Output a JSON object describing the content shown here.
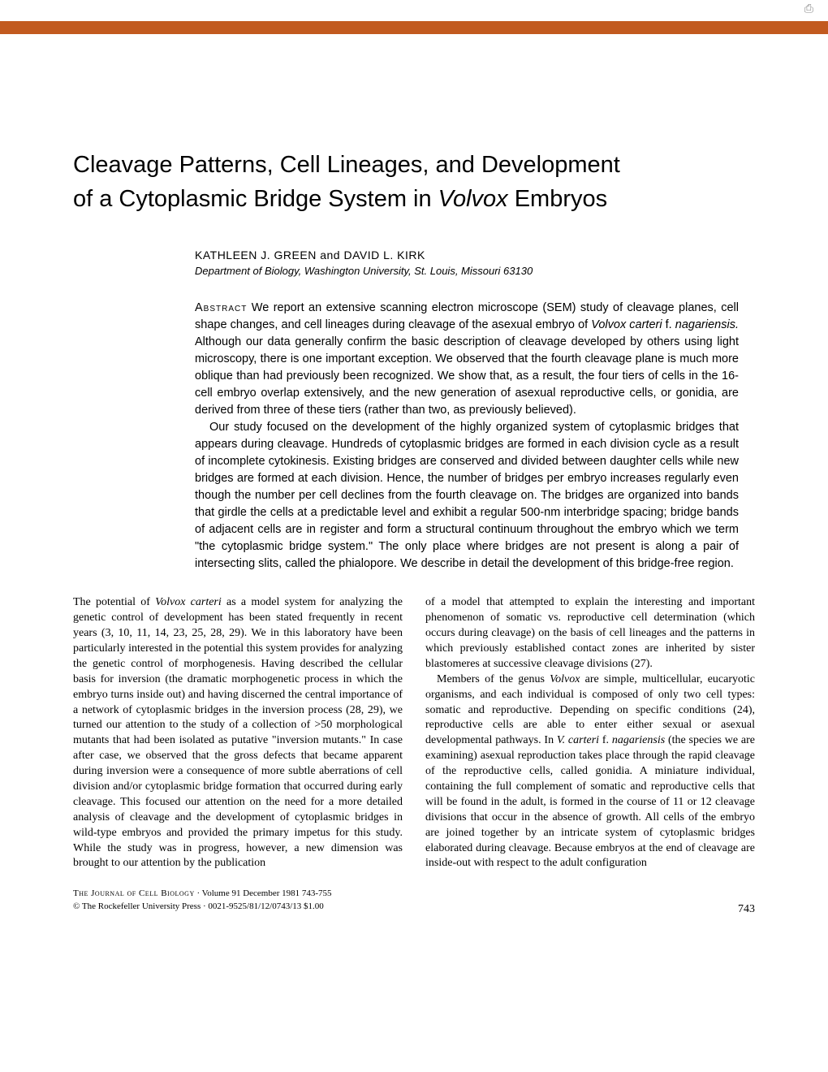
{
  "header": {
    "bar_color": "#c25a1f"
  },
  "title": {
    "line1": "Cleavage Patterns, Cell Lineages, and Development",
    "line2_pre": "of a Cytoplasmic Bridge System in ",
    "line2_italic": "Volvox",
    "line2_post": " Embryos"
  },
  "authors": "KATHLEEN J. GREEN and DAVID L. KIRK",
  "affiliation": "Department of Biology, Washington University, St. Louis, Missouri 63130",
  "abstract": {
    "label": "Abstract",
    "p1_pre": "   We report an extensive scanning electron microscope (SEM) study of cleavage planes, cell shape changes, and cell lineages during cleavage of the asexual embryo of ",
    "p1_it1": "Volvox carteri",
    "p1_mid": " f. ",
    "p1_it2": "nagariensis.",
    "p1_post": " Although our data generally confirm the basic description of cleavage developed by others using light microscopy, there is one important exception. We observed that the fourth cleavage plane is much more oblique than had previously been recognized. We show that, as a result, the four tiers of cells in the 16-cell embryo overlap extensively, and the new generation of asexual reproductive cells, or gonidia, are derived from three of these tiers (rather than two, as previously believed).",
    "p2": "Our study focused on the development of the highly organized system of cytoplasmic bridges that appears during cleavage. Hundreds of cytoplasmic bridges are formed in each division cycle as a result of incomplete cytokinesis. Existing bridges are conserved and divided between daughter cells while new bridges are formed at each division. Hence, the number of bridges per embryo increases regularly even though the number per cell declines from the fourth cleavage on. The bridges are organized into bands that girdle the cells at a predictable level and exhibit a regular 500-nm interbridge spacing; bridge bands of adjacent cells are in register and form a structural continuum throughout the embryo which we term \"the cytoplasmic bridge system.\" The only place where bridges are not present is along a pair of intersecting slits, called the phialopore. We describe in detail the development of this bridge-free region."
  },
  "body": {
    "left": {
      "p1_pre": "The potential of ",
      "p1_it": "Volvox carteri",
      "p1_post": " as a model system for analyzing the genetic control of development has been stated frequently in recent years (3, 10, 11, 14, 23, 25, 28, 29). We in this laboratory have been particularly interested in the potential this system provides for analyzing the genetic control of morphogenesis. Having described the cellular basis for inversion (the dramatic morphogenetic process in which the embryo turns inside out) and having discerned the central importance of a network of cytoplasmic bridges in the inversion process (28, 29), we turned our attention to the study of a collection of >50 morphological mutants that had been isolated as putative \"inversion mutants.\" In case after case, we observed that the gross defects that became apparent during inversion were a consequence of more subtle aberrations of cell division and/or cytoplasmic bridge formation that occurred during early cleavage. This focused our attention on the need for a more detailed analysis of cleavage and the development of cytoplasmic bridges in wild-type embryos and provided the primary impetus for this study. While the study was in progress, however, a new dimension was brought to our attention by the publication"
    },
    "right": {
      "p1": "of a model that attempted to explain the interesting and important phenomenon of somatic vs. reproductive cell determination (which occurs during cleavage) on the basis of cell lineages and the patterns in which previously established contact zones are inherited by sister blastomeres at successive cleavage divisions (27).",
      "p2_pre": "Members of the genus ",
      "p2_it1": "Volvox",
      "p2_mid1": " are simple, multicellular, eucaryotic organisms, and each individual is composed of only two cell types: somatic and reproductive. Depending on specific conditions (24), reproductive cells are able to enter either sexual or asexual developmental pathways. In ",
      "p2_it2": "V. carteri",
      "p2_mid2": " f. ",
      "p2_it3": "nagariensis",
      "p2_post": " (the species we are examining) asexual reproduction takes place through the rapid cleavage of the reproductive cells, called gonidia. A miniature individual, containing the full complement of somatic and reproductive cells that will be found in the adult, is formed in the course of 11 or 12 cleavage divisions that occur in the absence of growth. All cells of the embryo are joined together by an intricate system of cytoplasmic bridges elaborated during cleavage. Because embryos at the end of cleavage are inside-out with respect to the adult configuration"
    }
  },
  "footer": {
    "journal": "The Journal of Cell Biology",
    "vol": " · Volume 91 December 1981 743-755",
    "copyright": "© The Rockefeller University Press · 0021-9525/81/12/0743/13 $1.00",
    "page": "743"
  }
}
